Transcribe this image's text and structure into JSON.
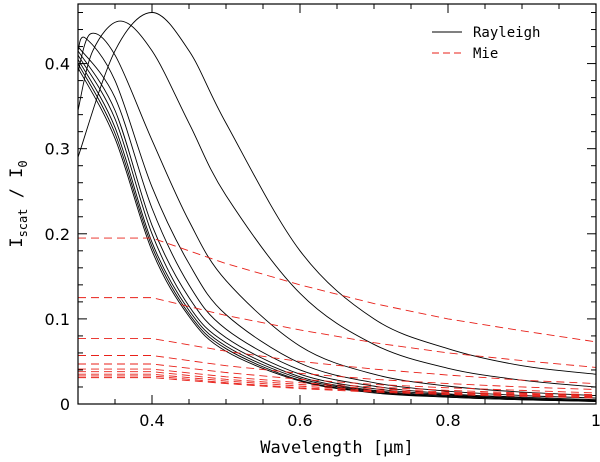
{
  "chart_data": {
    "type": "line",
    "title": "",
    "xlabel": "Wavelength [μm]",
    "ylabel_parts": {
      "main": "I",
      "sub": "scat",
      "sep": " / ",
      "main2": "I",
      "sub2": "0"
    },
    "xlim": [
      0.3,
      1.0
    ],
    "ylim": [
      0,
      0.47
    ],
    "x_ticks": [
      0.4,
      0.6,
      0.8,
      1.0
    ],
    "x_tick_labels": [
      "0.4",
      "0.6",
      "0.8",
      "1"
    ],
    "y_ticks": [
      0,
      0.1,
      0.2,
      0.3,
      0.4
    ],
    "y_tick_labels": [
      "0",
      "0.1",
      "0.2",
      "0.3",
      "0.4"
    ],
    "legend": {
      "position": "top-right",
      "entries": [
        "Rayleigh",
        "Mie"
      ]
    },
    "colors": {
      "rayleigh": "#000000",
      "mie": "#e8211a"
    },
    "series": [
      {
        "name": "Rayleigh",
        "group": "rayleigh",
        "style": "solid",
        "x": [
          0.3,
          0.35,
          0.4,
          0.45,
          0.5,
          0.6,
          0.7,
          0.8,
          0.9,
          1.0
        ],
        "y": [
          0.29,
          0.415,
          0.46,
          0.415,
          0.33,
          0.18,
          0.1,
          0.065,
          0.045,
          0.035
        ]
      },
      {
        "name": "Rayleigh",
        "group": "rayleigh",
        "style": "solid",
        "x": [
          0.3,
          0.32,
          0.357,
          0.4,
          0.45,
          0.5,
          0.6,
          0.7,
          0.8,
          0.9,
          1.0
        ],
        "y": [
          0.345,
          0.415,
          0.45,
          0.415,
          0.33,
          0.245,
          0.13,
          0.07,
          0.042,
          0.028,
          0.02
        ]
      },
      {
        "name": "Rayleigh",
        "group": "rayleigh",
        "style": "solid",
        "x": [
          0.3,
          0.317,
          0.35,
          0.4,
          0.45,
          0.5,
          0.6,
          0.7,
          0.8,
          0.9,
          1.0
        ],
        "y": [
          0.39,
          0.435,
          0.41,
          0.31,
          0.215,
          0.145,
          0.068,
          0.035,
          0.021,
          0.014,
          0.01
        ]
      },
      {
        "name": "Rayleigh",
        "group": "rayleigh",
        "style": "solid",
        "x": [
          0.3,
          0.31,
          0.35,
          0.4,
          0.45,
          0.5,
          0.6,
          0.7,
          0.8,
          0.9,
          1.0
        ],
        "y": [
          0.415,
          0.43,
          0.38,
          0.255,
          0.165,
          0.105,
          0.048,
          0.025,
          0.015,
          0.01,
          0.007
        ]
      },
      {
        "name": "Rayleigh",
        "group": "rayleigh",
        "style": "solid",
        "x": [
          0.3,
          0.35,
          0.4,
          0.45,
          0.5,
          0.6,
          0.7,
          0.8,
          0.9,
          1.0
        ],
        "y": [
          0.42,
          0.36,
          0.23,
          0.14,
          0.088,
          0.04,
          0.021,
          0.012,
          0.008,
          0.005
        ]
      },
      {
        "name": "Rayleigh",
        "group": "rayleigh",
        "style": "solid",
        "x": [
          0.3,
          0.35,
          0.4,
          0.45,
          0.5,
          0.6,
          0.7,
          0.8,
          0.9,
          1.0
        ],
        "y": [
          0.415,
          0.345,
          0.21,
          0.125,
          0.078,
          0.035,
          0.018,
          0.011,
          0.007,
          0.004
        ]
      },
      {
        "name": "Rayleigh",
        "group": "rayleigh",
        "style": "solid",
        "x": [
          0.3,
          0.35,
          0.4,
          0.45,
          0.5,
          0.6,
          0.7,
          0.8,
          0.9,
          1.0
        ],
        "y": [
          0.41,
          0.335,
          0.2,
          0.115,
          0.072,
          0.032,
          0.016,
          0.01,
          0.006,
          0.004
        ]
      },
      {
        "name": "Rayleigh",
        "group": "rayleigh",
        "style": "solid",
        "x": [
          0.3,
          0.35,
          0.4,
          0.45,
          0.5,
          0.6,
          0.7,
          0.8,
          0.9,
          1.0
        ],
        "y": [
          0.405,
          0.325,
          0.19,
          0.11,
          0.068,
          0.03,
          0.015,
          0.009,
          0.006,
          0.003
        ]
      },
      {
        "name": "Rayleigh",
        "group": "rayleigh",
        "style": "solid",
        "x": [
          0.3,
          0.35,
          0.4,
          0.45,
          0.5,
          0.6,
          0.7,
          0.8,
          0.9,
          1.0
        ],
        "y": [
          0.4,
          0.318,
          0.185,
          0.106,
          0.065,
          0.028,
          0.014,
          0.008,
          0.005,
          0.003
        ]
      },
      {
        "name": "Rayleigh",
        "group": "rayleigh",
        "style": "solid",
        "x": [
          0.3,
          0.35,
          0.4,
          0.45,
          0.5,
          0.6,
          0.7,
          0.8,
          0.9,
          1.0
        ],
        "y": [
          0.395,
          0.312,
          0.18,
          0.103,
          0.062,
          0.027,
          0.013,
          0.008,
          0.005,
          0.003
        ]
      },
      {
        "name": "Mie",
        "group": "mie",
        "style": "dashed",
        "x": [
          0.3,
          0.4,
          0.5,
          0.6,
          0.7,
          0.8,
          0.9,
          1.0
        ],
        "y": [
          0.195,
          0.195,
          0.165,
          0.14,
          0.118,
          0.1,
          0.086,
          0.073
        ]
      },
      {
        "name": "Mie",
        "group": "mie",
        "style": "dashed",
        "x": [
          0.3,
          0.4,
          0.5,
          0.6,
          0.7,
          0.8,
          0.9,
          1.0
        ],
        "y": [
          0.125,
          0.125,
          0.104,
          0.087,
          0.072,
          0.06,
          0.051,
          0.043
        ]
      },
      {
        "name": "Mie",
        "group": "mie",
        "style": "dashed",
        "x": [
          0.3,
          0.4,
          0.5,
          0.6,
          0.7,
          0.8,
          0.9,
          1.0
        ],
        "y": [
          0.077,
          0.077,
          0.062,
          0.05,
          0.041,
          0.034,
          0.028,
          0.024
        ]
      },
      {
        "name": "Mie",
        "group": "mie",
        "style": "dashed",
        "x": [
          0.3,
          0.4,
          0.5,
          0.6,
          0.7,
          0.8,
          0.9,
          1.0
        ],
        "y": [
          0.057,
          0.057,
          0.045,
          0.036,
          0.029,
          0.024,
          0.02,
          0.017
        ]
      },
      {
        "name": "Mie",
        "group": "mie",
        "style": "dashed",
        "x": [
          0.3,
          0.4,
          0.5,
          0.6,
          0.7,
          0.8,
          0.9,
          1.0
        ],
        "y": [
          0.047,
          0.047,
          0.037,
          0.029,
          0.023,
          0.019,
          0.016,
          0.013
        ]
      },
      {
        "name": "Mie",
        "group": "mie",
        "style": "dashed",
        "x": [
          0.3,
          0.4,
          0.5,
          0.6,
          0.7,
          0.8,
          0.9,
          1.0
        ],
        "y": [
          0.041,
          0.041,
          0.032,
          0.025,
          0.02,
          0.016,
          0.013,
          0.011
        ]
      },
      {
        "name": "Mie",
        "group": "mie",
        "style": "dashed",
        "x": [
          0.3,
          0.4,
          0.5,
          0.6,
          0.7,
          0.8,
          0.9,
          1.0
        ],
        "y": [
          0.038,
          0.038,
          0.029,
          0.023,
          0.018,
          0.014,
          0.012,
          0.01
        ]
      },
      {
        "name": "Mie",
        "group": "mie",
        "style": "dashed",
        "x": [
          0.3,
          0.4,
          0.5,
          0.6,
          0.7,
          0.8,
          0.9,
          1.0
        ],
        "y": [
          0.035,
          0.035,
          0.027,
          0.021,
          0.016,
          0.013,
          0.011,
          0.009
        ]
      },
      {
        "name": "Mie",
        "group": "mie",
        "style": "dashed",
        "x": [
          0.3,
          0.4,
          0.5,
          0.6,
          0.7,
          0.8,
          0.9,
          1.0
        ],
        "y": [
          0.033,
          0.033,
          0.025,
          0.019,
          0.015,
          0.012,
          0.01,
          0.008
        ]
      },
      {
        "name": "Mie",
        "group": "mie",
        "style": "dashed",
        "x": [
          0.3,
          0.4,
          0.5,
          0.6,
          0.7,
          0.8,
          0.9,
          1.0
        ],
        "y": [
          0.031,
          0.031,
          0.024,
          0.018,
          0.014,
          0.011,
          0.009,
          0.007
        ]
      }
    ]
  }
}
